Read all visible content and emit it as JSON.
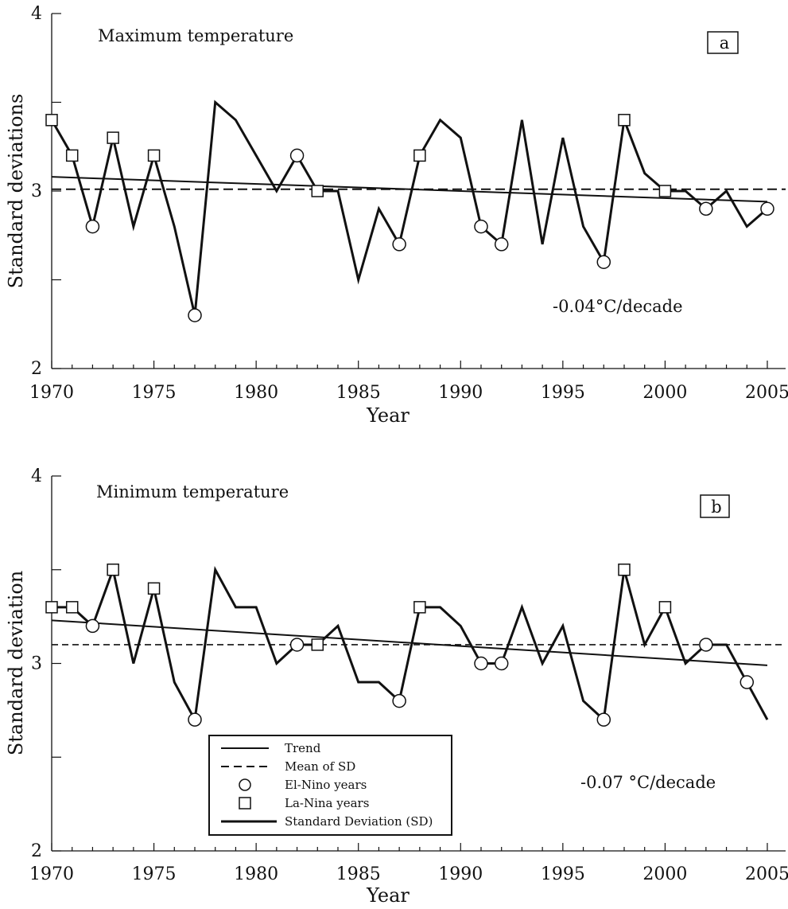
{
  "chart_data": [
    {
      "type": "line",
      "panel": "a",
      "title": "Maximum temperature",
      "annotation": "-0.04°C/decade",
      "xlabel": "Year",
      "ylabel": "Standard deviations",
      "xlim": [
        1970,
        2005
      ],
      "ylim": [
        2,
        4
      ],
      "x_ticks": [
        1970,
        1975,
        1980,
        1985,
        1990,
        1995,
        2000,
        2005
      ],
      "y_ticks": [
        2,
        3,
        4
      ],
      "x": [
        1970,
        1971,
        1972,
        1973,
        1974,
        1975,
        1976,
        1977,
        1978,
        1979,
        1980,
        1981,
        1982,
        1983,
        1984,
        1985,
        1986,
        1987,
        1988,
        1989,
        1990,
        1991,
        1992,
        1993,
        1994,
        1995,
        1996,
        1997,
        1998,
        1999,
        2000,
        2001,
        2002,
        2003,
        2004,
        2005
      ],
      "series": [
        {
          "name": "Standard Deviation (SD)",
          "values": [
            3.4,
            3.2,
            2.8,
            3.3,
            2.8,
            3.2,
            2.8,
            2.3,
            3.5,
            3.4,
            3.2,
            3.0,
            3.2,
            3.0,
            3.0,
            2.5,
            2.9,
            2.7,
            3.2,
            3.4,
            3.3,
            2.8,
            2.7,
            3.4,
            2.7,
            3.3,
            2.8,
            2.6,
            3.4,
            3.1,
            3.0,
            3.0,
            2.9,
            3.0,
            2.8,
            2.9
          ]
        }
      ],
      "trend": {
        "name": "Trend",
        "x": [
          1970,
          2005
        ],
        "y": [
          3.08,
          2.94
        ]
      },
      "mean": {
        "name": "Mean of SD",
        "y": 3.01
      },
      "el_nino_years": [
        1972,
        1977,
        1982,
        1987,
        1991,
        1992,
        1997,
        2002,
        2005
      ],
      "la_nina_years": [
        1970,
        1971,
        1973,
        1975,
        1983,
        1988,
        1998,
        2000
      ]
    },
    {
      "type": "line",
      "panel": "b",
      "title": "Minimum temperature",
      "annotation": "-0.07 °C/decade",
      "xlabel": "Year",
      "ylabel": "Standard deviation",
      "xlim": [
        1970,
        2005
      ],
      "ylim": [
        2,
        4
      ],
      "x_ticks": [
        1970,
        1975,
        1980,
        1985,
        1990,
        1995,
        2000,
        2005
      ],
      "y_ticks": [
        2,
        3,
        4
      ],
      "x": [
        1970,
        1971,
        1972,
        1973,
        1974,
        1975,
        1976,
        1977,
        1978,
        1979,
        1980,
        1981,
        1982,
        1983,
        1984,
        1985,
        1986,
        1987,
        1988,
        1989,
        1990,
        1991,
        1992,
        1993,
        1994,
        1995,
        1996,
        1997,
        1998,
        1999,
        2000,
        2001,
        2002,
        2003,
        2004,
        2005
      ],
      "series": [
        {
          "name": "Standard Deviation (SD)",
          "values": [
            3.3,
            3.3,
            3.2,
            3.5,
            3.0,
            3.4,
            2.9,
            2.7,
            3.5,
            3.3,
            3.3,
            3.0,
            3.1,
            3.1,
            3.2,
            2.9,
            2.9,
            2.8,
            3.3,
            3.3,
            3.2,
            3.0,
            3.0,
            3.3,
            3.0,
            3.2,
            2.8,
            2.7,
            3.5,
            3.1,
            3.3,
            3.0,
            3.1,
            3.1,
            2.9,
            2.7
          ]
        }
      ],
      "trend": {
        "name": "Trend",
        "x": [
          1970,
          2005
        ],
        "y": [
          3.23,
          2.99
        ]
      },
      "mean": {
        "name": "Mean of SD",
        "y": 3.1
      },
      "el_nino_years": [
        1972,
        1977,
        1982,
        1987,
        1991,
        1992,
        1997,
        2002,
        2004
      ],
      "la_nina_years": [
        1970,
        1971,
        1973,
        1975,
        1983,
        1988,
        1998,
        2000
      ],
      "legend": {
        "location": "lower-left",
        "entries": [
          {
            "label": "Trend",
            "symbol": "solid-line"
          },
          {
            "label": "Mean  of  SD",
            "symbol": "dashed-line"
          },
          {
            "label": "El-Nino years",
            "symbol": "circle"
          },
          {
            "label": "La-Nina years",
            "symbol": "square"
          },
          {
            "label": "Standard Deviation (SD)",
            "symbol": "thick-line"
          }
        ]
      }
    }
  ]
}
